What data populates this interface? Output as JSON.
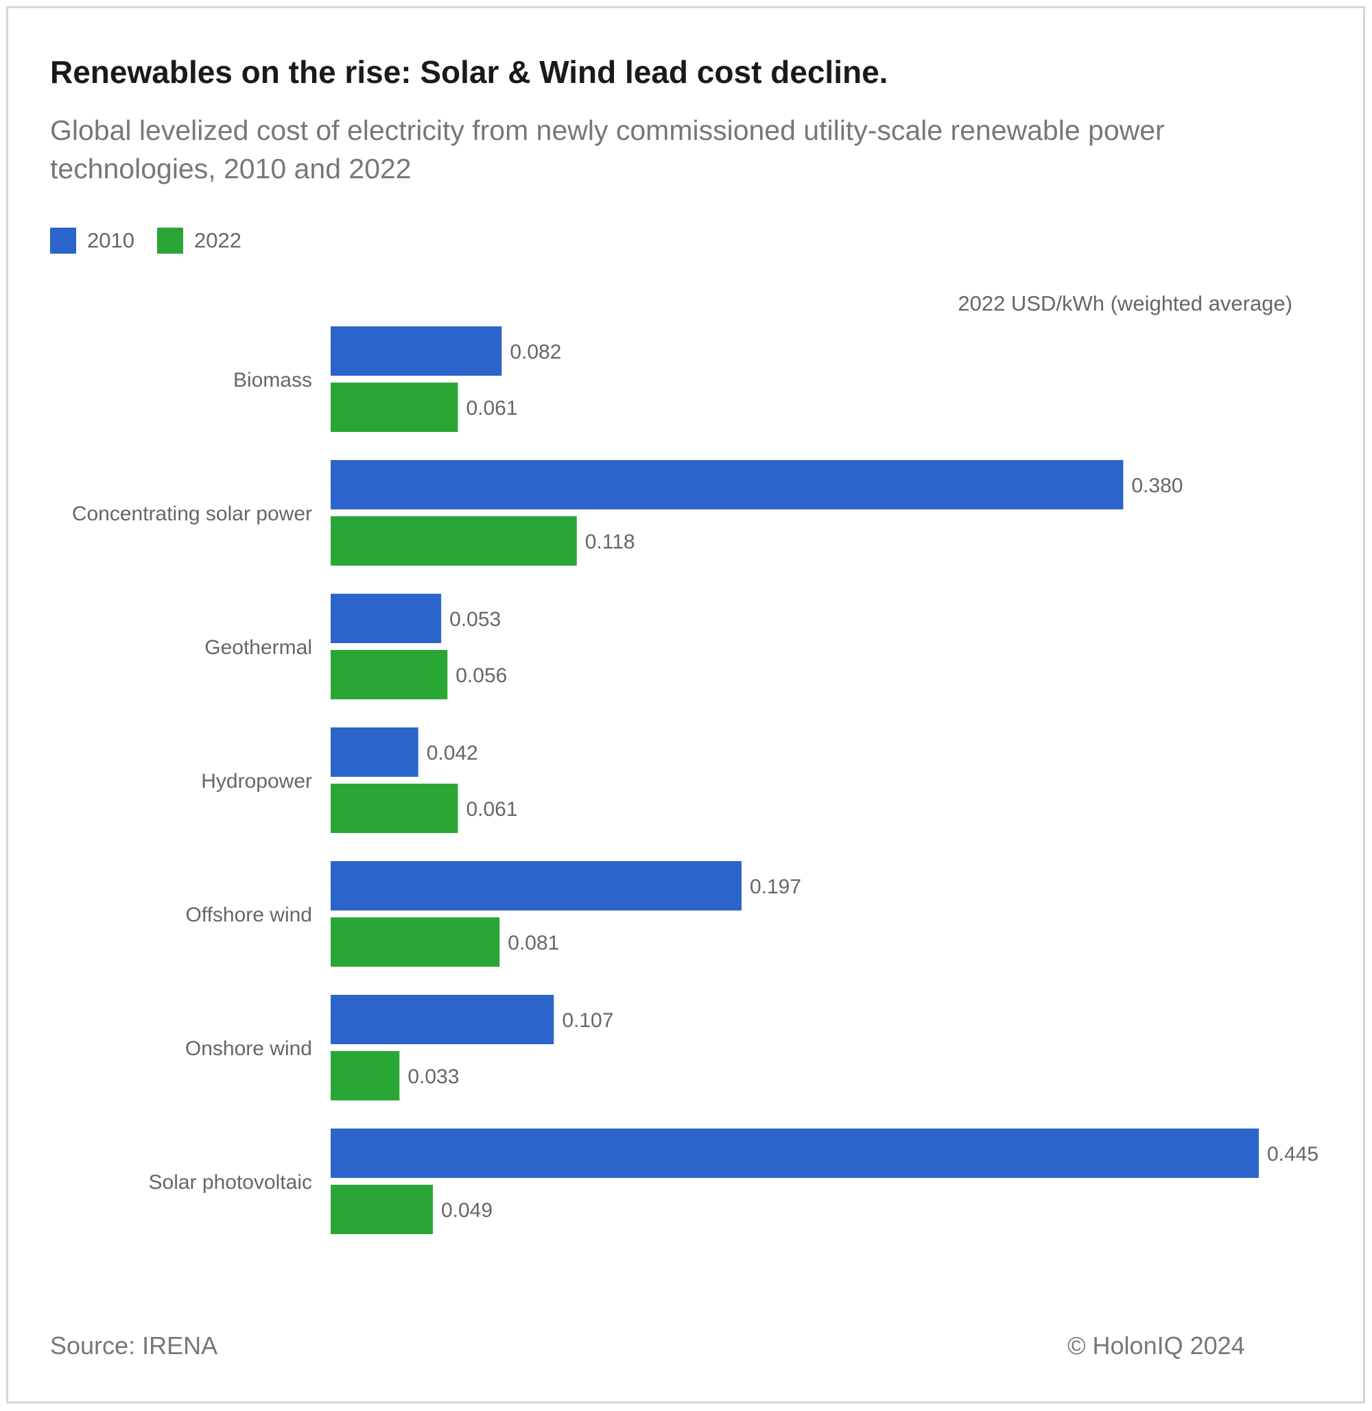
{
  "title": "Renewables on the rise: Solar & Wind lead cost decline.",
  "subtitle": "Global levelized cost of electricity from newly commissioned utility-scale renewable power technologies, 2010 and 2022",
  "source": "Source: IRENA",
  "copyright": "© HolonIQ 2024",
  "colors": {
    "s2010": "#2b65cc",
    "s2022": "#2aa636"
  },
  "chart_data": {
    "type": "bar",
    "orientation": "horizontal",
    "unit_label": "2022 USD/kWh (weighted average)",
    "categories": [
      "Biomass",
      "Concentrating solar power",
      "Geothermal",
      "Hydropower",
      "Offshore wind",
      "Onshore wind",
      "Solar photovoltaic"
    ],
    "series": [
      {
        "name": "2010",
        "values": [
          0.082,
          0.38,
          0.053,
          0.042,
          0.197,
          0.107,
          0.445
        ],
        "labels": [
          "0.082",
          "0.380",
          "0.053",
          "0.042",
          "0.197",
          "0.107",
          "0.445"
        ]
      },
      {
        "name": "2022",
        "values": [
          0.061,
          0.118,
          0.056,
          0.061,
          0.081,
          0.033,
          0.049
        ],
        "labels": [
          "0.061",
          "0.118",
          "0.056",
          "0.061",
          "0.081",
          "0.033",
          "0.049"
        ]
      }
    ],
    "xlim": [
      0,
      0.445
    ],
    "legend_position": "top-left",
    "grid": false
  }
}
